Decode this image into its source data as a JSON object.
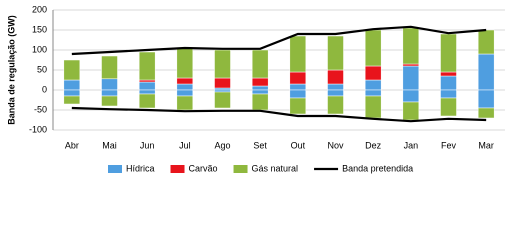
{
  "chart_data": {
    "type": "bar",
    "y_label": "Banda de regulação (GW)",
    "categories": [
      "Abr",
      "Mai",
      "Jun",
      "Jul",
      "Ago",
      "Set",
      "Out",
      "Nov",
      "Dez",
      "Jan",
      "Fev",
      "Mar"
    ],
    "series": [
      {
        "name": "Hídrica",
        "color": "#4f9ee0",
        "values": [
          25,
          28,
          20,
          15,
          5,
          10,
          15,
          15,
          25,
          60,
          35,
          90
        ],
        "values_down": [
          -15,
          -15,
          -10,
          -15,
          -5,
          -10,
          -20,
          -15,
          -15,
          -30,
          -20,
          -45
        ]
      },
      {
        "name": "Carvão",
        "color": "#e8141c",
        "values": [
          0,
          0,
          5,
          15,
          25,
          20,
          30,
          35,
          35,
          5,
          10,
          0
        ],
        "values_down": [
          0,
          0,
          0,
          0,
          0,
          0,
          0,
          0,
          0,
          0,
          0,
          0
        ]
      },
      {
        "name": "Gás natural",
        "color": "#8fb83e",
        "values": [
          50,
          57,
          70,
          75,
          70,
          70,
          90,
          85,
          90,
          90,
          95,
          60
        ],
        "values_down": [
          -20,
          -25,
          -35,
          -35,
          -40,
          -40,
          -40,
          -45,
          -55,
          -45,
          -45,
          -25
        ]
      }
    ],
    "lines": [
      {
        "name": "Banda pretendida",
        "color": "#000000",
        "values": [
          90,
          95,
          100,
          105,
          103,
          103,
          140,
          140,
          152,
          158,
          142,
          150
        ],
        "values_down": [
          -45,
          -48,
          -50,
          -53,
          -52,
          -52,
          -65,
          -65,
          -72,
          -78,
          -72,
          -75
        ]
      }
    ],
    "ylim": [
      -100,
      200
    ],
    "yticks": [
      -100,
      -50,
      0,
      50,
      100,
      150,
      200
    ],
    "grid": true
  }
}
